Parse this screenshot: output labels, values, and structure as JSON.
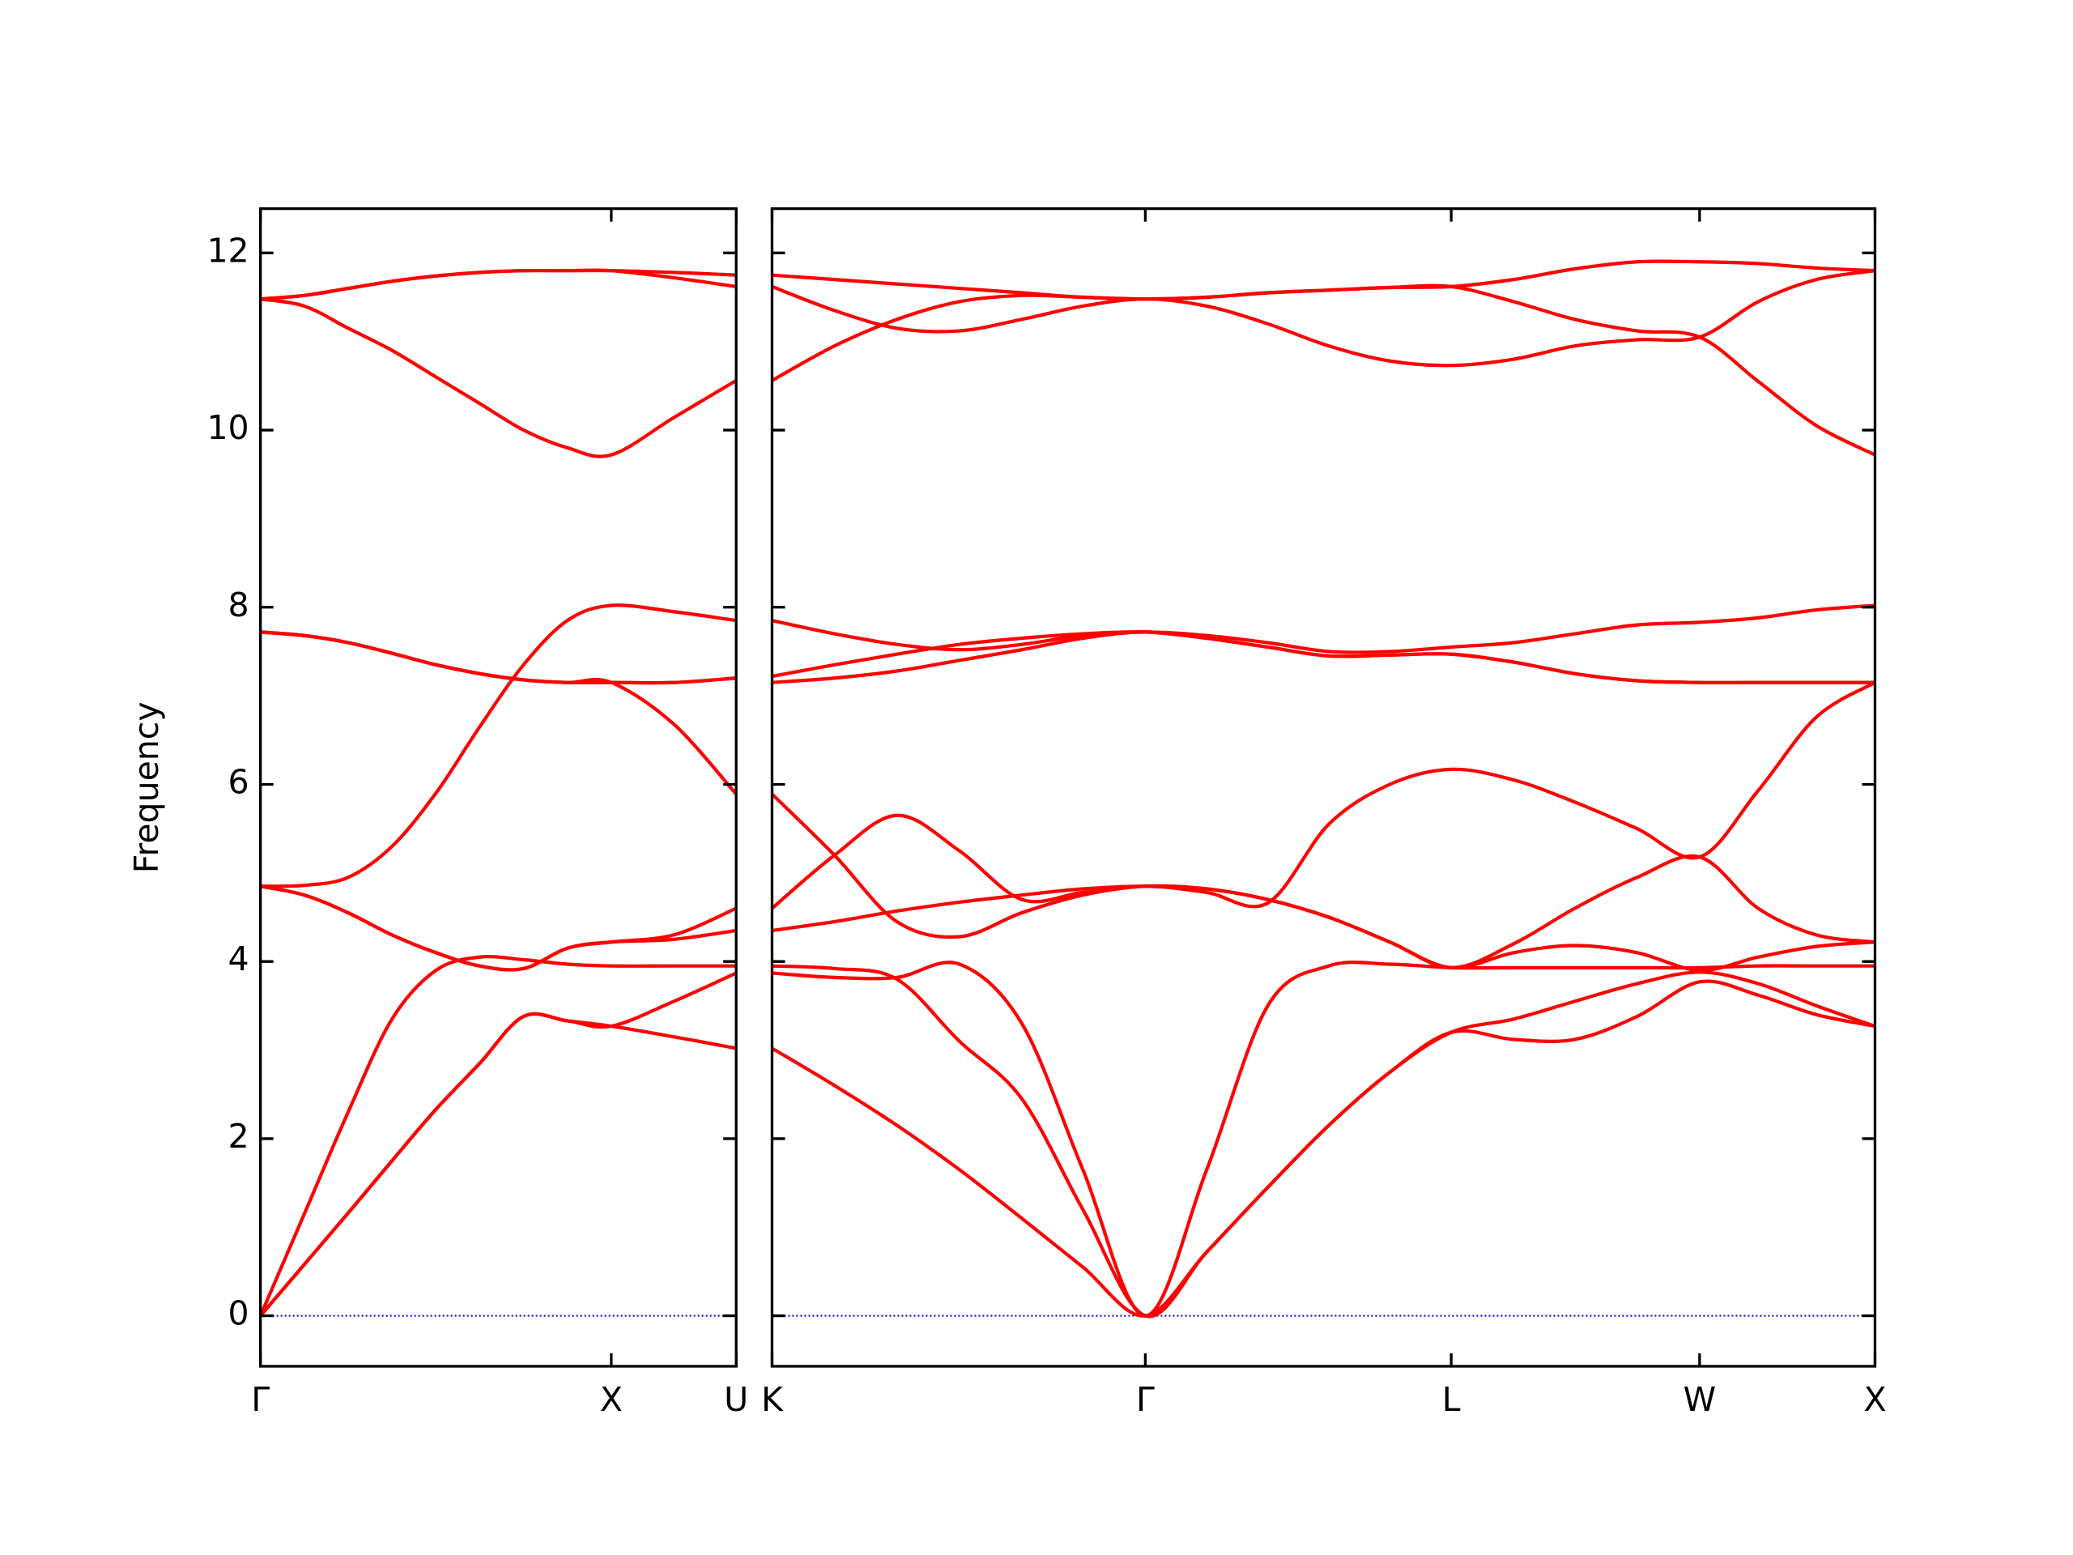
{
  "chart_data": [
    {
      "type": "line",
      "ylabel": "Frequency",
      "ytick_labels": true,
      "color": "#ff0000",
      "hline": 0,
      "hline_color": "#0000cd",
      "xlim": [
        0,
        1.356
      ],
      "ylim": [
        -0.57,
        12.5
      ],
      "xticks": [
        {
          "value": 0,
          "label": "Γ"
        },
        {
          "value": 1.0,
          "label": "X"
        },
        {
          "value": 1.356,
          "label": "U"
        }
      ],
      "yticks": [
        0,
        2,
        4,
        6,
        8,
        10,
        12
      ],
      "x": [
        0,
        0.125,
        0.25,
        0.375,
        0.5,
        0.625,
        0.75,
        0.875,
        1.0,
        1.178,
        1.356
      ],
      "series": [
        {
          "values": [
            0,
            0.58,
            1.16,
            1.75,
            2.33,
            2.85,
            3.38,
            3.33,
            3.27,
            3.15,
            3.02
          ]
        },
        {
          "values": [
            0,
            0.58,
            1.16,
            1.75,
            2.33,
            2.85,
            3.38,
            3.33,
            3.27,
            3.55,
            3.87
          ]
        },
        {
          "values": [
            0,
            1.15,
            2.3,
            3.35,
            3.9,
            4.05,
            4.02,
            3.97,
            3.95,
            3.95,
            3.95
          ]
        },
        {
          "values": [
            4.85,
            4.75,
            4.55,
            4.3,
            4.1,
            3.95,
            3.92,
            4.15,
            4.22,
            4.25,
            4.35
          ]
        },
        {
          "values": [
            4.85,
            4.75,
            4.55,
            4.3,
            4.1,
            3.95,
            3.92,
            4.15,
            4.22,
            4.3,
            4.6
          ]
        },
        {
          "values": [
            4.85,
            4.86,
            4.95,
            5.3,
            5.9,
            6.65,
            7.35,
            7.85,
            8.02,
            7.95,
            7.85
          ]
        },
        {
          "values": [
            7.72,
            7.68,
            7.6,
            7.48,
            7.35,
            7.25,
            7.18,
            7.15,
            7.15,
            7.15,
            7.2
          ]
        },
        {
          "values": [
            7.72,
            7.68,
            7.6,
            7.48,
            7.35,
            7.25,
            7.18,
            7.15,
            7.15,
            6.68,
            5.89
          ]
        },
        {
          "values": [
            7.72,
            7.68,
            7.6,
            7.48,
            7.35,
            7.25,
            7.18,
            7.15,
            7.15,
            7.15,
            7.2
          ]
        },
        {
          "values": [
            11.48,
            11.52,
            11.6,
            11.68,
            11.74,
            11.78,
            11.8,
            11.8,
            11.8,
            11.78,
            11.75
          ]
        },
        {
          "values": [
            11.48,
            11.52,
            11.6,
            11.68,
            11.74,
            11.78,
            11.8,
            11.8,
            11.8,
            11.72,
            11.62
          ]
        },
        {
          "values": [
            11.48,
            11.4,
            11.15,
            10.9,
            10.6,
            10.3,
            10.0,
            9.8,
            9.72,
            10.14,
            10.56
          ]
        }
      ]
    },
    {
      "type": "line",
      "ytick_labels": false,
      "color": "#ff0000",
      "hline": 0,
      "hline_color": "#0000cd",
      "xlim": [
        0,
        3.144
      ],
      "ylim": [
        -0.57,
        12.5
      ],
      "xticks": [
        {
          "value": 0,
          "label": "K"
        },
        {
          "value": 1.064,
          "label": "Γ"
        },
        {
          "value": 1.936,
          "label": "L"
        },
        {
          "value": 2.644,
          "label": "W"
        },
        {
          "value": 3.144,
          "label": "X"
        }
      ],
      "yticks": [
        0,
        2,
        4,
        6,
        8,
        10,
        12
      ],
      "x": [
        0,
        0.178,
        0.356,
        0.534,
        0.712,
        0.886,
        1.064,
        1.239,
        1.413,
        1.587,
        1.761,
        1.936,
        2.114,
        2.288,
        2.466,
        2.644,
        2.811,
        2.977,
        3.144
      ],
      "series": [
        {
          "values": [
            3.02,
            2.6,
            2.15,
            1.65,
            1.1,
            0.55,
            0,
            0.72,
            1.45,
            2.15,
            2.75,
            3.2,
            3.12,
            3.12,
            3.38,
            3.77,
            3.62,
            3.4,
            3.27
          ]
        },
        {
          "values": [
            3.87,
            3.82,
            3.82,
            3.97,
            3.3,
            1.65,
            0,
            1.65,
            3.5,
            3.95,
            3.97,
            3.93,
            3.93,
            3.93,
            3.93,
            3.93,
            3.95,
            3.95,
            3.95
          ]
        },
        {
          "values": [
            3.95,
            3.92,
            3.8,
            3.1,
            2.45,
            1.2,
            0,
            0.72,
            1.45,
            2.15,
            2.75,
            3.2,
            3.35,
            3.55,
            3.75,
            3.88,
            3.75,
            3.5,
            3.27
          ]
        },
        {
          "values": [
            4.35,
            4.45,
            4.57,
            4.67,
            4.75,
            4.82,
            4.85,
            4.82,
            4.7,
            4.5,
            4.22,
            3.93,
            4.1,
            4.18,
            4.1,
            3.9,
            4.05,
            4.17,
            4.22
          ]
        },
        {
          "values": [
            4.6,
            5.2,
            5.65,
            5.25,
            4.7,
            4.78,
            4.85,
            4.78,
            4.66,
            5.55,
            6.0,
            6.17,
            6.05,
            5.8,
            5.5,
            5.18,
            5.93,
            6.76,
            7.15
          ]
        },
        {
          "values": [
            5.89,
            5.2,
            4.45,
            4.28,
            4.55,
            4.75,
            4.85,
            4.82,
            4.7,
            4.5,
            4.22,
            3.93,
            4.2,
            4.6,
            4.95,
            5.18,
            4.6,
            4.3,
            4.22
          ]
        },
        {
          "values": [
            7.15,
            7.2,
            7.28,
            7.4,
            7.52,
            7.65,
            7.72,
            7.65,
            7.55,
            7.45,
            7.46,
            7.47,
            7.38,
            7.25,
            7.17,
            7.15,
            7.15,
            7.15,
            7.15
          ]
        },
        {
          "values": [
            7.22,
            7.35,
            7.47,
            7.58,
            7.65,
            7.7,
            7.72,
            7.65,
            7.55,
            7.45,
            7.46,
            7.47,
            7.38,
            7.25,
            7.17,
            7.15,
            7.15,
            7.15,
            7.15
          ]
        },
        {
          "values": [
            7.85,
            7.7,
            7.58,
            7.52,
            7.58,
            7.68,
            7.72,
            7.68,
            7.6,
            7.5,
            7.5,
            7.55,
            7.6,
            7.7,
            7.8,
            7.83,
            7.88,
            7.97,
            8.02
          ]
        },
        {
          "values": [
            10.56,
            10.95,
            11.25,
            11.45,
            11.52,
            11.5,
            11.48,
            11.5,
            11.55,
            11.58,
            11.61,
            11.62,
            11.45,
            11.25,
            11.12,
            11.05,
            10.55,
            10.05,
            9.72
          ]
        },
        {
          "values": [
            11.62,
            11.35,
            11.15,
            11.12,
            11.25,
            11.4,
            11.48,
            11.4,
            11.2,
            10.95,
            10.78,
            10.73,
            10.8,
            10.95,
            11.02,
            11.05,
            11.45,
            11.7,
            11.8
          ]
        },
        {
          "values": [
            11.75,
            11.7,
            11.65,
            11.6,
            11.55,
            11.5,
            11.48,
            11.5,
            11.55,
            11.58,
            11.61,
            11.62,
            11.7,
            11.82,
            11.9,
            11.9,
            11.88,
            11.83,
            11.8
          ]
        }
      ]
    }
  ]
}
